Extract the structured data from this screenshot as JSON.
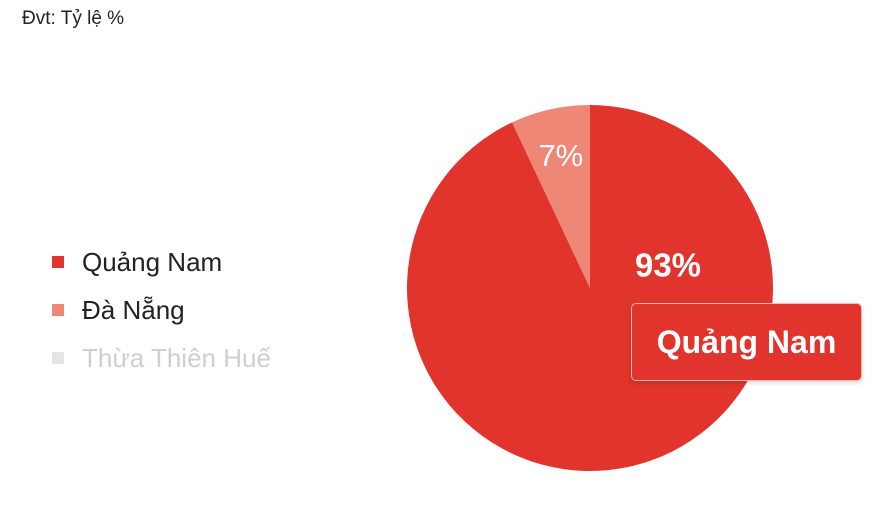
{
  "unit_label": "Đvt: Tỷ lệ %",
  "chart_data": {
    "type": "pie",
    "categories": [
      "Quảng Nam",
      "Đà Nẵng",
      "Thừa Thiên Huế"
    ],
    "values": [
      93,
      7,
      0
    ],
    "data_labels": [
      "93%",
      "7%",
      ""
    ],
    "colors": [
      "#e0342d",
      "#ef8777",
      "#e8e4e2"
    ],
    "legend_position": "left",
    "legend_faded": [
      false,
      false,
      true
    ],
    "tooltip": "Quảng Nam"
  }
}
